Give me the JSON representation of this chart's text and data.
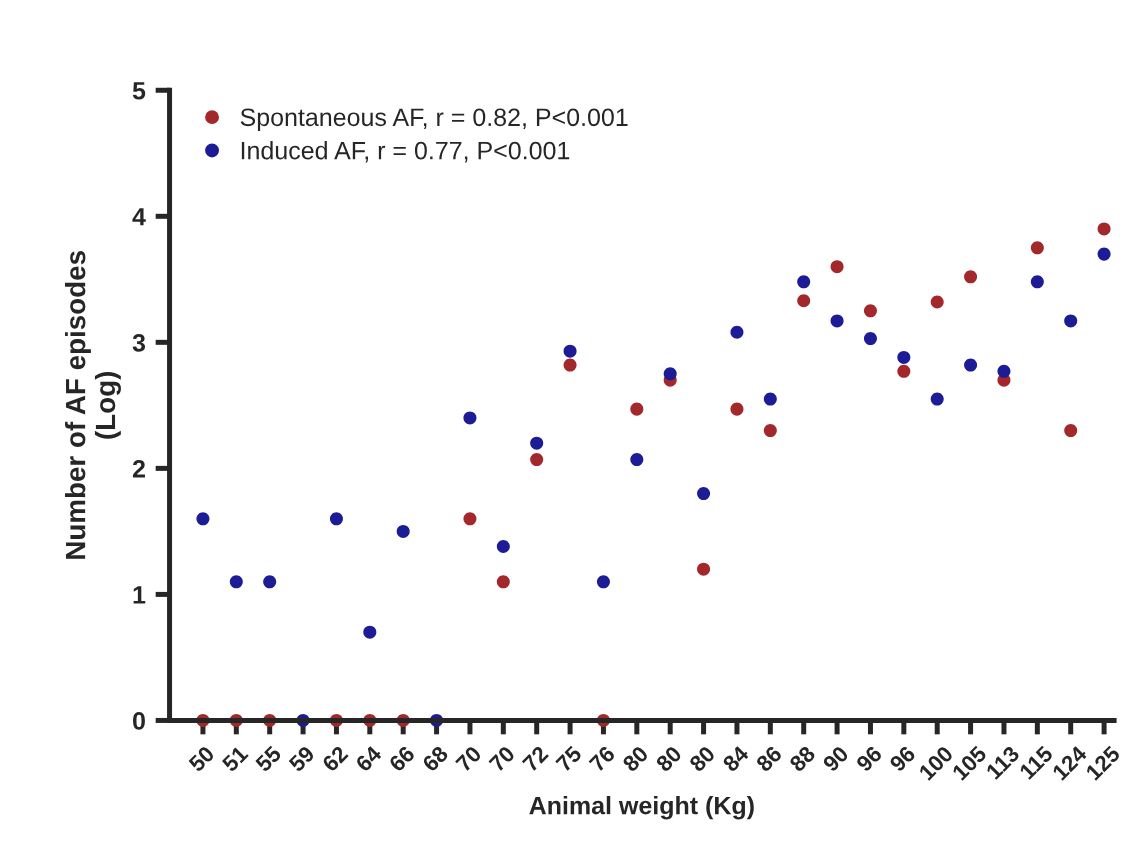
{
  "chart_data": {
    "type": "scatter",
    "xlabel": "Animal weight (Kg)",
    "ylabel": "Number of AF episodes\n(Log)",
    "categories": [
      "50",
      "51",
      "55",
      "59",
      "62",
      "64",
      "66",
      "68",
      "70",
      "70",
      "72",
      "75",
      "76",
      "80",
      "80",
      "80",
      "84",
      "86",
      "88",
      "90",
      "96",
      "96",
      "100",
      "105",
      "113",
      "115",
      "124",
      "125"
    ],
    "series": [
      {
        "name": "Spontaneous AF, r = 0.82, P<0.001",
        "color": "#a3282c",
        "values": [
          0,
          0,
          0,
          null,
          0,
          0,
          0,
          null,
          1.6,
          1.1,
          2.07,
          2.82,
          0,
          2.47,
          2.7,
          1.2,
          2.47,
          2.3,
          3.33,
          3.6,
          3.25,
          2.77,
          3.32,
          3.52,
          2.7,
          3.75,
          2.3,
          3.9
        ]
      },
      {
        "name": "Induced AF, r = 0.77, P<0.001",
        "color": "#1c1c96",
        "values": [
          1.6,
          1.1,
          1.1,
          0,
          1.6,
          0.7,
          1.5,
          0,
          2.4,
          1.38,
          2.2,
          2.93,
          1.1,
          2.07,
          2.75,
          1.8,
          3.08,
          2.55,
          3.48,
          3.17,
          3.03,
          2.88,
          2.55,
          2.82,
          2.77,
          3.48,
          3.17,
          3.7
        ]
      }
    ],
    "ylim": [
      0,
      5
    ],
    "yticks": [
      0,
      1,
      2,
      3,
      4,
      5
    ],
    "grid": false,
    "legend": "top left",
    "marker": "circle"
  }
}
